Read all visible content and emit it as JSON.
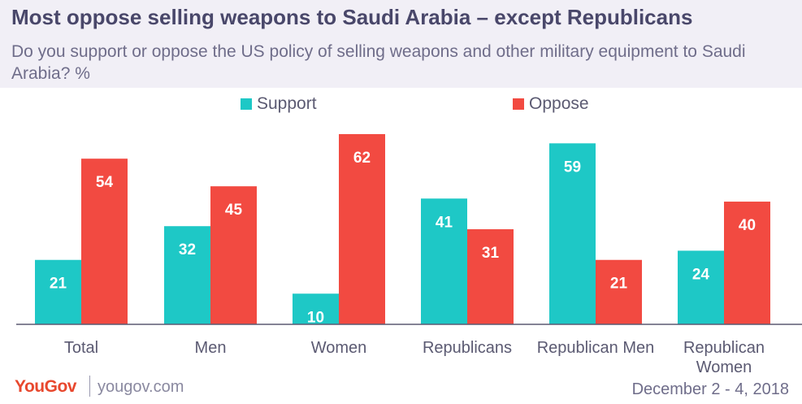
{
  "title": "Most oppose selling weapons to Saudi Arabia – except Republicans",
  "subtitle": "Do you support or oppose the US policy of selling weapons and other military equipment to Saudi Arabia? %",
  "footer": {
    "logo": "YouGov",
    "site": "yougov.com",
    "date": "December 2 - 4, 2018"
  },
  "colors": {
    "support": "#1ec8c6",
    "oppose": "#f24a41",
    "axis": "#5b5a72",
    "label_text": "#ffffff",
    "category_text": "#5b5a72"
  },
  "chart_data": {
    "type": "bar",
    "categories": [
      [
        "Total"
      ],
      [
        "Men"
      ],
      [
        "Women"
      ],
      [
        "Republicans"
      ],
      [
        "Republican Men"
      ],
      [
        "Republican",
        "Women"
      ]
    ],
    "series": [
      {
        "name": "Support",
        "values": [
          21,
          32,
          10,
          41,
          59,
          24
        ]
      },
      {
        "name": "Oppose",
        "values": [
          54,
          45,
          62,
          31,
          21,
          40
        ]
      }
    ],
    "ylim": [
      0,
      62
    ],
    "legend_position": "top",
    "grid": false,
    "data_labels": true
  }
}
